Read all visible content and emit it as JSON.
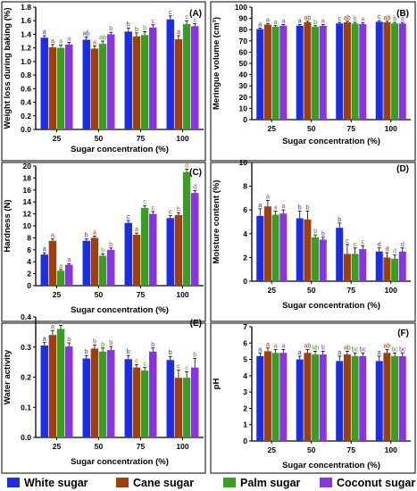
{
  "chart_data": [
    {
      "type": "bar",
      "panel_label": "(A)",
      "xlabel": "Sugar concentration (%)",
      "ylabel": "Weight loss during baking (%)",
      "ylim": [
        0,
        1.8
      ],
      "yticks": [
        "0.0",
        "0.2",
        "0.4",
        "0.6",
        "0.8",
        "1.0",
        "1.2",
        "1.4",
        "1.6",
        "1.8"
      ],
      "categories": [
        "25",
        "50",
        "75",
        "100"
      ],
      "series": [
        {
          "name": "White sugar",
          "values": [
            1.35,
            1.32,
            1.44,
            1.62
          ],
          "errors": [
            0.03,
            0.04,
            0.05,
            0.05
          ],
          "letters": [
            "a",
            "ab",
            "b",
            "c"
          ]
        },
        {
          "name": "Cane sugar",
          "values": [
            1.21,
            1.19,
            1.37,
            1.33
          ],
          "errors": [
            0.04,
            0.04,
            0.05,
            0.05
          ],
          "letters": [
            "a",
            "a",
            "b",
            "a"
          ]
        },
        {
          "name": "Palm sugar",
          "values": [
            1.2,
            1.26,
            1.39,
            1.55
          ],
          "errors": [
            0.04,
            0.04,
            0.05,
            0.05
          ],
          "letters": [
            "a",
            "ab",
            "b",
            "c"
          ]
        },
        {
          "name": "Coconut sugar",
          "values": [
            1.25,
            1.4,
            1.5,
            1.52
          ],
          "errors": [
            0.03,
            0.03,
            0.04,
            0.04
          ],
          "letters": [
            "a",
            "b",
            "c",
            "c"
          ]
        }
      ]
    },
    {
      "type": "bar",
      "panel_label": "(B)",
      "xlabel": "Sugar concentration (%)",
      "ylabel": "Meringue volume (cm³)",
      "ylim": [
        0,
        100
      ],
      "yticks": [
        "0",
        "10",
        "20",
        "30",
        "40",
        "50",
        "60",
        "70",
        "80",
        "90",
        "100"
      ],
      "categories": [
        "25",
        "50",
        "75",
        "100"
      ],
      "series": [
        {
          "name": "White sugar",
          "values": [
            80.5,
            83.5,
            85.5,
            87.0
          ],
          "errors": [
            1.0,
            1.0,
            1.0,
            1.0
          ],
          "letters": [
            "a",
            "a",
            "c",
            "c"
          ]
        },
        {
          "name": "Cane sugar",
          "values": [
            84.5,
            86.5,
            86.5,
            86.5
          ],
          "errors": [
            1.0,
            1.0,
            1.0,
            1.0
          ],
          "letters": [
            "a",
            "ab",
            "ab",
            "ab"
          ]
        },
        {
          "name": "Palm sugar",
          "values": [
            82.5,
            82.5,
            85.5,
            85.5
          ],
          "errors": [
            1.0,
            1.0,
            1.0,
            1.0
          ],
          "letters": [
            "a",
            "b",
            "b",
            "b"
          ]
        },
        {
          "name": "Coconut sugar",
          "values": [
            83.5,
            83.5,
            85.0,
            85.5
          ],
          "errors": [
            1.0,
            1.0,
            1.0,
            1.0
          ],
          "letters": [
            "a",
            "a",
            "a",
            "a"
          ]
        }
      ]
    },
    {
      "type": "bar",
      "panel_label": "(C)",
      "xlabel": "Sugar concentration (%)",
      "ylabel": "Hardness (N)",
      "ylim": [
        0,
        20
      ],
      "yticks": [
        "0",
        "2",
        "4",
        "6",
        "8",
        "10",
        "12",
        "14",
        "16",
        "18",
        "20"
      ],
      "categories": [
        "25",
        "50",
        "75",
        "100"
      ],
      "series": [
        {
          "name": "White sugar",
          "values": [
            5.2,
            7.5,
            10.5,
            11.3
          ],
          "errors": [
            0.3,
            0.3,
            0.4,
            0.4
          ],
          "letters": [
            "a",
            "b",
            "c",
            "c"
          ]
        },
        {
          "name": "Cane sugar",
          "values": [
            7.5,
            8.0,
            8.5,
            11.8
          ],
          "errors": [
            0.3,
            0.3,
            0.3,
            0.4
          ],
          "letters": [
            "a",
            "a",
            "a",
            "b"
          ]
        },
        {
          "name": "Palm sugar",
          "values": [
            2.5,
            5.0,
            13.0,
            19.0
          ],
          "errors": [
            0.2,
            0.3,
            0.4,
            0.5
          ],
          "letters": [
            "a",
            "b",
            "c",
            "d"
          ]
        },
        {
          "name": "Coconut sugar",
          "values": [
            3.5,
            6.0,
            12.0,
            15.5
          ],
          "errors": [
            0.2,
            0.3,
            0.4,
            0.4
          ],
          "letters": [
            "a",
            "b",
            "c",
            "d"
          ]
        }
      ]
    },
    {
      "type": "bar",
      "panel_label": "(D)",
      "xlabel": "Sugar concentration (%)",
      "ylabel": "Moisture content (%)",
      "ylim": [
        0,
        10
      ],
      "yticks": [
        "0",
        "2",
        "4",
        "6",
        "8",
        "10"
      ],
      "categories": [
        "25",
        "50",
        "75",
        "100"
      ],
      "series": [
        {
          "name": "White sugar",
          "values": [
            5.5,
            5.3,
            4.5,
            2.5
          ],
          "errors": [
            0.6,
            0.6,
            0.4,
            0.3
          ],
          "letters": [
            "a",
            "b",
            "b",
            "d"
          ]
        },
        {
          "name": "Cane sugar",
          "values": [
            6.3,
            5.2,
            2.3,
            2.0
          ],
          "errors": [
            0.5,
            0.7,
            0.8,
            0.4
          ],
          "letters": [
            "a",
            "b",
            "c",
            "d"
          ]
        },
        {
          "name": "Palm sugar",
          "values": [
            5.6,
            3.7,
            2.3,
            1.9
          ],
          "errors": [
            0.3,
            0.2,
            0.5,
            0.3
          ],
          "letters": [
            "a",
            "b",
            "c",
            "d"
          ]
        },
        {
          "name": "Coconut sugar",
          "values": [
            5.7,
            3.5,
            2.7,
            2.5
          ],
          "errors": [
            0.3,
            0.2,
            0.3,
            0.3
          ],
          "letters": [
            "a",
            "b",
            "c",
            "d"
          ]
        }
      ]
    },
    {
      "type": "bar",
      "panel_label": "(E)",
      "xlabel": "Sugar concentration (%)",
      "ylabel": "Water activity",
      "ylim": [
        0,
        0.4
      ],
      "yticks": [
        "0.0",
        "0.1",
        "0.2",
        "0.3",
        "0.4"
      ],
      "categories": [
        "25",
        "50",
        "75",
        "100"
      ],
      "series": [
        {
          "name": "White sugar",
          "values": [
            0.305,
            0.262,
            0.26,
            0.257
          ],
          "errors": [
            0.01,
            0.01,
            0.012,
            0.012
          ],
          "letters": [
            "a",
            "b",
            "b",
            "b"
          ]
        },
        {
          "name": "Cane sugar",
          "values": [
            0.34,
            0.295,
            0.232,
            0.198
          ],
          "errors": [
            0.015,
            0.012,
            0.01,
            0.025
          ],
          "letters": [
            "a",
            "b",
            "c",
            "c"
          ]
        },
        {
          "name": "Palm sugar",
          "values": [
            0.36,
            0.285,
            0.222,
            0.198
          ],
          "errors": [
            0.012,
            0.012,
            0.01,
            0.02
          ],
          "letters": [
            "a",
            "b",
            "c",
            "c"
          ]
        },
        {
          "name": "Coconut sugar",
          "values": [
            0.302,
            0.29,
            0.285,
            0.232
          ],
          "errors": [
            0.012,
            0.012,
            0.012,
            0.03
          ],
          "letters": [
            "a",
            "b",
            "b",
            "b"
          ]
        }
      ]
    },
    {
      "type": "bar",
      "panel_label": "(F)",
      "xlabel": "Sugar concentration (%)",
      "ylabel": "pH",
      "ylim": [
        0,
        7
      ],
      "yticks": [
        "0",
        "1",
        "2",
        "3",
        "4",
        "5",
        "6",
        "7"
      ],
      "categories": [
        "25",
        "50",
        "75",
        "100"
      ],
      "series": [
        {
          "name": "White sugar",
          "values": [
            5.2,
            5.0,
            4.9,
            4.9
          ],
          "errors": [
            0.2,
            0.2,
            0.3,
            0.3
          ],
          "letters": [
            "a",
            "a",
            "a",
            "a"
          ]
        },
        {
          "name": "Cane sugar",
          "values": [
            5.5,
            5.4,
            5.3,
            5.4
          ],
          "errors": [
            0.2,
            0.2,
            0.2,
            0.2
          ],
          "letters": [
            "a",
            "ab",
            "ab",
            "ab"
          ]
        },
        {
          "name": "Palm sugar",
          "values": [
            5.4,
            5.3,
            5.2,
            5.2
          ],
          "errors": [
            0.2,
            0.2,
            0.2,
            0.2
          ],
          "letters": [
            "a",
            "ab",
            "bc",
            "bc"
          ]
        },
        {
          "name": "Coconut sugar",
          "values": [
            5.4,
            5.3,
            5.2,
            5.2
          ],
          "errors": [
            0.2,
            0.2,
            0.2,
            0.2
          ],
          "letters": [
            "a",
            "b",
            "bc",
            "bc"
          ]
        }
      ]
    }
  ],
  "legend": {
    "placement": "bottom",
    "items": [
      {
        "label": "White sugar",
        "color": "#1b2ee6"
      },
      {
        "label": "Cane sugar",
        "color": "#9e3f10"
      },
      {
        "label": "Palm sugar",
        "color": "#3a9e23"
      },
      {
        "label": "Coconut sugar",
        "color": "#8a33e3"
      }
    ]
  },
  "colors": {
    "series": [
      "#1b2ee6",
      "#9e3f10",
      "#3a9e23",
      "#8a33e3"
    ],
    "letters": [
      "#1b2ee6",
      "#b8320f",
      "#3a9e23",
      "#8a33e3"
    ]
  }
}
